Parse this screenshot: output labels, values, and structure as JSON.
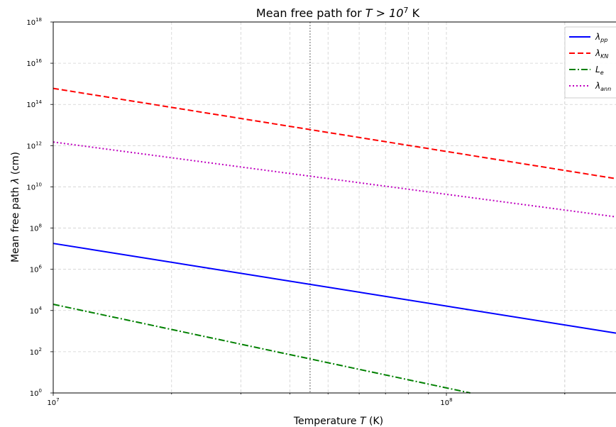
{
  "chart_data": {
    "type": "line",
    "title_prefix": "Mean free path for ",
    "title_math": "T > 10",
    "title_math_sup": "7",
    "title_suffix": " K",
    "xlabel_prefix": "Temperature ",
    "xlabel_var": "T",
    "xlabel_suffix": " (K)",
    "ylabel_prefix": "Mean free path ",
    "ylabel_var": "λ",
    "ylabel_suffix": " (cm)",
    "xscale": "log",
    "yscale": "log",
    "xlim": [
      10000000,
      270000000
    ],
    "ylim": [
      1,
      1e+18
    ],
    "x_ticks": [
      {
        "value": 10000000,
        "base": "10",
        "exp": "7"
      },
      {
        "value": 100000000,
        "base": "10",
        "exp": "8"
      }
    ],
    "y_ticks": [
      {
        "value": 1,
        "base": "10",
        "exp": "0"
      },
      {
        "value": 100,
        "base": "10",
        "exp": "2"
      },
      {
        "value": 10000,
        "base": "10",
        "exp": "4"
      },
      {
        "value": 1000000,
        "base": "10",
        "exp": "6"
      },
      {
        "value": 100000000,
        "base": "10",
        "exp": "8"
      },
      {
        "value": 10000000000,
        "base": "10",
        "exp": "10"
      },
      {
        "value": 1000000000000,
        "base": "10",
        "exp": "12"
      },
      {
        "value": 100000000000000,
        "base": "10",
        "exp": "14"
      },
      {
        "value": 10000000000000000,
        "base": "10",
        "exp": "16"
      },
      {
        "value": 1000000000000000000,
        "base": "10",
        "exp": "18"
      }
    ],
    "grid": true,
    "vline_x": 45000000,
    "legend_position": "upper right",
    "series": [
      {
        "name_base": "λ",
        "name_sub": "pp",
        "color": "#0000ff",
        "style": "solid",
        "x": [
          10000000,
          270000000
        ],
        "y": [
          18000000,
          800
        ]
      },
      {
        "name_base": "λ",
        "name_sub": "KN",
        "color": "#ff0000",
        "style": "dashed",
        "x": [
          10000000,
          270000000
        ],
        "y": [
          600000000000000,
          25000000000
        ]
      },
      {
        "name_base": "L",
        "name_sub": "e",
        "color": "#008000",
        "style": "dashdot",
        "x": [
          10000000,
          115000000
        ],
        "y": [
          20000,
          1
        ]
      },
      {
        "name_base": "λ",
        "name_sub": "ann",
        "color": "#bf00bf",
        "style": "dotted",
        "x": [
          10000000,
          270000000
        ],
        "y": [
          1500000000000,
          350000000
        ]
      }
    ]
  }
}
